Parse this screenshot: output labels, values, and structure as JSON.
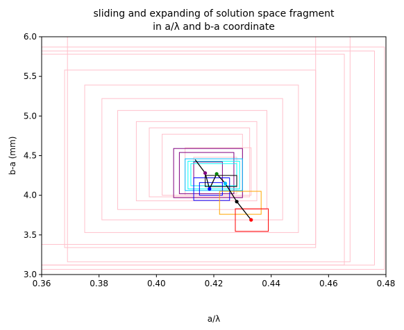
{
  "chart_data": {
    "type": "line",
    "title": "sliding and expanding of solution space fragment\nin a/λ and b-a coordinate",
    "xlabel": "a/λ",
    "ylabel": "b-a (mm)",
    "xlim": [
      0.36,
      0.48
    ],
    "ylim": [
      3.0,
      6.0
    ],
    "xticks": [
      "0.36",
      "0.38",
      "0.40",
      "0.42",
      "0.44",
      "0.46",
      "0.48"
    ],
    "yticks": [
      "3.0",
      "3.5",
      "4.0",
      "4.5",
      "5.0",
      "5.5",
      "6.0"
    ],
    "grid": false,
    "colors": {
      "pink": "#ffc0cb",
      "purple": "#800080",
      "blue": "#0000ff",
      "cyan": "#00ffff",
      "deepskyblue": "#00bfff",
      "orange": "#ffa500",
      "red": "#ff0000",
      "green": "#008000",
      "black": "#000000"
    },
    "rectangles": [
      {
        "color": "pink",
        "x0": 0.36,
        "x1": 0.4795,
        "y0": 3.065,
        "y1": 5.87
      },
      {
        "color": "pink",
        "x0": 0.36,
        "x1": 0.476,
        "y0": 3.12,
        "y1": 5.82
      },
      {
        "color": "pink",
        "x0": 0.369,
        "x1": 0.4675,
        "y0": 3.16,
        "y1": 6.0
      },
      {
        "color": "pink",
        "x0": 0.36,
        "x1": 0.4655,
        "y0": 3.12,
        "y1": 5.78
      },
      {
        "color": "pink",
        "x0": 0.368,
        "x1": 0.4555,
        "y0": 3.34,
        "y1": 5.58
      },
      {
        "color": "pink",
        "x0": 0.36,
        "x1": 0.4555,
        "y0": 3.38,
        "y1": 6.0
      },
      {
        "color": "pink",
        "x0": 0.375,
        "x1": 0.4495,
        "y0": 3.53,
        "y1": 5.39
      },
      {
        "color": "pink",
        "x0": 0.381,
        "x1": 0.444,
        "y0": 3.69,
        "y1": 5.22
      },
      {
        "color": "pink",
        "x0": 0.3865,
        "x1": 0.4385,
        "y0": 3.82,
        "y1": 5.07
      },
      {
        "color": "pink",
        "x0": 0.393,
        "x1": 0.435,
        "y0": 3.93,
        "y1": 4.93
      },
      {
        "color": "pink",
        "x0": 0.3975,
        "x1": 0.4325,
        "y0": 3.98,
        "y1": 4.85
      },
      {
        "color": "pink",
        "x0": 0.402,
        "x1": 0.43,
        "y0": 4.0,
        "y1": 4.77
      },
      {
        "color": "pink",
        "x0": 0.41,
        "x1": 0.433,
        "y0": 4.0,
        "y1": 4.6
      },
      {
        "color": "pink",
        "x0": 0.413,
        "x1": 0.428,
        "y0": 4.02,
        "y1": 4.48
      },
      {
        "color": "pink",
        "x0": 0.48,
        "x1": 0.48,
        "y0": 3.14,
        "y1": 5.9
      },
      {
        "color": "purple",
        "x0": 0.406,
        "x1": 0.43,
        "y0": 3.97,
        "y1": 4.59
      },
      {
        "color": "purple",
        "x0": 0.408,
        "x1": 0.427,
        "y0": 4.02,
        "y1": 4.54
      },
      {
        "color": "purple",
        "x0": 0.413,
        "x1": 0.423,
        "y0": 4.12,
        "y1": 4.42
      },
      {
        "color": "deepskyblue",
        "x0": 0.41,
        "x1": 0.43,
        "y0": 4.06,
        "y1": 4.46
      },
      {
        "color": "cyan",
        "x0": 0.411,
        "x1": 0.429,
        "y0": 4.08,
        "y1": 4.43
      },
      {
        "color": "cyan",
        "x0": 0.412,
        "x1": 0.428,
        "y0": 4.12,
        "y1": 4.4
      },
      {
        "color": "blue",
        "x0": 0.413,
        "x1": 0.4255,
        "y0": 3.935,
        "y1": 4.22
      },
      {
        "color": "blue",
        "x0": 0.415,
        "x1": 0.423,
        "y0": 4.0,
        "y1": 4.16
      },
      {
        "color": "orange",
        "x0": 0.422,
        "x1": 0.4365,
        "y0": 3.76,
        "y1": 4.05
      },
      {
        "color": "red",
        "x0": 0.4275,
        "x1": 0.439,
        "y0": 3.545,
        "y1": 3.83
      },
      {
        "color": "black",
        "x0": 0.417,
        "x1": 0.428,
        "y0": 4.11,
        "y1": 4.25
      }
    ],
    "path": {
      "color": "black",
      "x": [
        0.4135,
        0.417,
        0.4185,
        0.421,
        0.424,
        0.428,
        0.433
      ],
      "y": [
        4.45,
        4.28,
        4.08,
        4.27,
        4.15,
        3.92,
        3.69
      ]
    },
    "points": [
      {
        "color": "purple",
        "x": 0.417,
        "y": 4.28
      },
      {
        "color": "blue",
        "x": 0.4185,
        "y": 4.08
      },
      {
        "color": "green",
        "x": 0.421,
        "y": 4.27
      },
      {
        "color": "deepskyblue",
        "x": 0.424,
        "y": 4.15
      },
      {
        "color": "black",
        "x": 0.428,
        "y": 3.92
      },
      {
        "color": "red",
        "x": 0.433,
        "y": 3.69
      }
    ]
  }
}
